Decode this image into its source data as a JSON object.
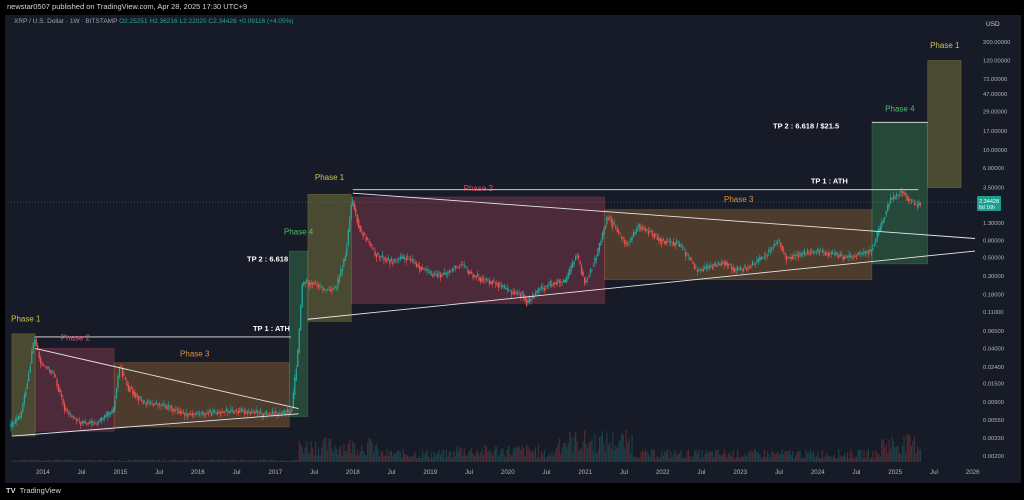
{
  "header": {
    "publisher": "newstar0507 published on TradingView.com, Apr 28, 2025 17:30 UTC+9",
    "symbol": "XRP / U.S. Dollar · 1W · BITSTAMP",
    "ohlc": "O2.25251 H2.36216 L2.22020 C2.34428 +0.09116 (+4.05%)"
  },
  "footer": {
    "logo_text": "TradingView"
  },
  "colors": {
    "background": "#161b27",
    "up": "#26a69a",
    "down": "#ef5350",
    "phase1": "#d4c34c",
    "phase2": "#e0516a",
    "phase3": "#e0913e",
    "phase4": "#4fbf6a",
    "price_badge": "#1e9e8f"
  },
  "chart_data": {
    "type": "candlestick",
    "symbol": "XRP / U.S. Dollar · 1W · BITSTAMP",
    "y_axis": {
      "unit": "USD",
      "scale": "log",
      "ticks": [
        200.0,
        120.0,
        72.0,
        47.0,
        29.0,
        17.0,
        10.0,
        6.0,
        3.5,
        1.3,
        0.8,
        0.5,
        0.3,
        0.18,
        0.11,
        0.065,
        0.04,
        0.024,
        0.015,
        0.009,
        0.0055,
        0.0033,
        0.002
      ],
      "tick_labels": [
        "200.00000",
        "120.00000",
        "72.00000",
        "47.00000",
        "29.00000",
        "17.00000",
        "10.00000",
        "6.00000",
        "3.50000",
        "1.30000",
        "0.80000",
        "0.50000",
        "0.30000",
        "0.18000",
        "0.11000",
        "0.06500",
        "0.04000",
        "0.02400",
        "0.01500",
        "0.00900",
        "0.00550",
        "0.00330",
        "0.00200"
      ],
      "range": [
        0.0017,
        280
      ]
    },
    "x_axis": {
      "range": [
        2013.55,
        2026.03
      ],
      "ticks": [
        {
          "x": 2014.0,
          "label": "2014"
        },
        {
          "x": 2014.5,
          "label": "Jul"
        },
        {
          "x": 2015.0,
          "label": "2015"
        },
        {
          "x": 2015.5,
          "label": "Jul"
        },
        {
          "x": 2016.0,
          "label": "2016"
        },
        {
          "x": 2016.5,
          "label": "Jul"
        },
        {
          "x": 2017.0,
          "label": "2017"
        },
        {
          "x": 2017.5,
          "label": "Jul"
        },
        {
          "x": 2018.0,
          "label": "2018"
        },
        {
          "x": 2018.5,
          "label": "Jul"
        },
        {
          "x": 2019.0,
          "label": "2019"
        },
        {
          "x": 2019.5,
          "label": "Jul"
        },
        {
          "x": 2020.0,
          "label": "2020"
        },
        {
          "x": 2020.5,
          "label": "Jul"
        },
        {
          "x": 2021.0,
          "label": "2021"
        },
        {
          "x": 2021.5,
          "label": "Jul"
        },
        {
          "x": 2022.0,
          "label": "2022"
        },
        {
          "x": 2022.5,
          "label": "Jul"
        },
        {
          "x": 2023.0,
          "label": "2023"
        },
        {
          "x": 2023.5,
          "label": "Jul"
        },
        {
          "x": 2024.0,
          "label": "2024"
        },
        {
          "x": 2024.5,
          "label": "Jul"
        },
        {
          "x": 2025.0,
          "label": "2025"
        },
        {
          "x": 2025.5,
          "label": "Jul"
        },
        {
          "x": 2026.0,
          "label": "2026"
        }
      ]
    },
    "price_keypoints": [
      [
        2013.58,
        0.0045
      ],
      [
        2013.72,
        0.006
      ],
      [
        2013.82,
        0.018
      ],
      [
        2013.9,
        0.055
      ],
      [
        2013.98,
        0.026
      ],
      [
        2014.15,
        0.02
      ],
      [
        2014.3,
        0.007
      ],
      [
        2014.5,
        0.005
      ],
      [
        2014.7,
        0.005
      ],
      [
        2014.92,
        0.007
      ],
      [
        2015.0,
        0.025
      ],
      [
        2015.1,
        0.014
      ],
      [
        2015.3,
        0.009
      ],
      [
        2015.6,
        0.008
      ],
      [
        2015.85,
        0.0065
      ],
      [
        2016.1,
        0.0065
      ],
      [
        2016.35,
        0.007
      ],
      [
        2016.6,
        0.007
      ],
      [
        2016.85,
        0.0065
      ],
      [
        2017.0,
        0.0065
      ],
      [
        2017.1,
        0.0065
      ],
      [
        2017.22,
        0.007
      ],
      [
        2017.3,
        0.035
      ],
      [
        2017.36,
        0.25
      ],
      [
        2017.5,
        0.25
      ],
      [
        2017.65,
        0.2
      ],
      [
        2017.8,
        0.22
      ],
      [
        2017.92,
        0.55
      ],
      [
        2018.0,
        2.5
      ],
      [
        2018.1,
        1.1
      ],
      [
        2018.2,
        0.8
      ],
      [
        2018.3,
        0.55
      ],
      [
        2018.5,
        0.45
      ],
      [
        2018.7,
        0.5
      ],
      [
        2018.9,
        0.37
      ],
      [
        2019.0,
        0.32
      ],
      [
        2019.2,
        0.31
      ],
      [
        2019.4,
        0.42
      ],
      [
        2019.55,
        0.31
      ],
      [
        2019.7,
        0.27
      ],
      [
        2019.85,
        0.25
      ],
      [
        2020.0,
        0.2
      ],
      [
        2020.2,
        0.18
      ],
      [
        2020.25,
        0.14
      ],
      [
        2020.4,
        0.2
      ],
      [
        2020.6,
        0.25
      ],
      [
        2020.75,
        0.25
      ],
      [
        2020.9,
        0.55
      ],
      [
        2021.0,
        0.25
      ],
      [
        2021.15,
        0.5
      ],
      [
        2021.3,
        1.6
      ],
      [
        2021.45,
        0.95
      ],
      [
        2021.55,
        0.7
      ],
      [
        2021.7,
        1.2
      ],
      [
        2021.85,
        1.0
      ],
      [
        2022.0,
        0.8
      ],
      [
        2022.2,
        0.75
      ],
      [
        2022.35,
        0.5
      ],
      [
        2022.45,
        0.35
      ],
      [
        2022.6,
        0.38
      ],
      [
        2022.8,
        0.45
      ],
      [
        2022.95,
        0.35
      ],
      [
        2023.1,
        0.38
      ],
      [
        2023.3,
        0.5
      ],
      [
        2023.5,
        0.8
      ],
      [
        2023.6,
        0.5
      ],
      [
        2023.8,
        0.55
      ],
      [
        2024.0,
        0.6
      ],
      [
        2024.2,
        0.55
      ],
      [
        2024.4,
        0.5
      ],
      [
        2024.55,
        0.55
      ],
      [
        2024.7,
        0.6
      ],
      [
        2024.85,
        1.4
      ],
      [
        2024.95,
        2.5
      ],
      [
        2025.1,
        3.2
      ],
      [
        2025.2,
        2.4
      ],
      [
        2025.3,
        2.1
      ],
      [
        2025.32,
        2.34
      ]
    ],
    "phases": [
      {
        "label": "Phase 1",
        "color": "phase1",
        "x0": 2013.6,
        "x1": 2013.9,
        "y0": 0.0035,
        "y1": 0.06
      },
      {
        "label": "Phase 2",
        "color": "phase2",
        "x0": 2013.9,
        "x1": 2014.92,
        "y0": 0.004,
        "y1": 0.04
      },
      {
        "label": "Phase 3",
        "color": "phase3",
        "x0": 2014.92,
        "x1": 2017.18,
        "y0": 0.0045,
        "y1": 0.027
      },
      {
        "label": "Phase 4",
        "color": "phase4",
        "x0": 2017.18,
        "x1": 2017.42,
        "y0": 0.006,
        "y1": 0.6
      },
      {
        "label": "Phase 1",
        "color": "phase1",
        "x0": 2017.42,
        "x1": 2017.98,
        "y0": 0.085,
        "y1": 2.9
      },
      {
        "label": "Phase 2",
        "color": "phase2",
        "x0": 2017.98,
        "x1": 2021.25,
        "y0": 0.14,
        "y1": 2.7
      },
      {
        "label": "Phase 3",
        "color": "phase3",
        "x0": 2021.25,
        "x1": 2024.7,
        "y0": 0.27,
        "y1": 1.9
      },
      {
        "label": "Phase 4",
        "color": "phase4",
        "x0": 2024.7,
        "x1": 2025.42,
        "y0": 0.42,
        "y1": 21.5
      },
      {
        "label": "Phase 1",
        "color": "phase1",
        "x0": 2025.42,
        "x1": 2025.85,
        "y0": 3.5,
        "y1": 120
      }
    ],
    "trendlines": [
      {
        "x0": 2013.9,
        "y0": 0.055,
        "x1": 2017.2,
        "y1": 0.055
      },
      {
        "x0": 2013.9,
        "y0": 0.04,
        "x1": 2017.3,
        "y1": 0.0075
      },
      {
        "x0": 2013.6,
        "y0": 0.0035,
        "x1": 2017.3,
        "y1": 0.0065
      },
      {
        "x0": 2018.0,
        "y0": 3.3,
        "x1": 2025.3,
        "y1": 3.3
      },
      {
        "x0": 2018.0,
        "y0": 3.0,
        "x1": 2026.03,
        "y1": 0.85
      },
      {
        "x0": 2017.42,
        "y0": 0.09,
        "x1": 2026.03,
        "y1": 0.6
      },
      {
        "x0": 2024.7,
        "y0": 21.5,
        "x1": 2025.42,
        "y1": 21.5
      }
    ],
    "annotations": [
      {
        "text": "Phase 1",
        "color": "phase1",
        "x": 2013.78,
        "y": 0.085
      },
      {
        "text": "Phase 2",
        "color": "phase2",
        "x": 2014.42,
        "y": 0.05
      },
      {
        "text": "Phase 3",
        "color": "phase3",
        "x": 2015.96,
        "y": 0.032
      },
      {
        "text": "Phase 4",
        "color": "phase4",
        "x": 2017.3,
        "y": 0.95
      },
      {
        "text": "Phase 1",
        "color": "phase1",
        "x": 2017.7,
        "y": 4.3
      },
      {
        "text": "Phase 2",
        "color": "phase2",
        "x": 2019.62,
        "y": 3.2
      },
      {
        "text": "Phase 3",
        "color": "phase3",
        "x": 2022.98,
        "y": 2.35
      },
      {
        "text": "Phase 4",
        "color": "phase4",
        "x": 2025.06,
        "y": 29
      },
      {
        "text": "Phase 1",
        "color": "phase1",
        "x": 2025.64,
        "y": 170
      },
      {
        "text": "TP 1 : ATH",
        "color": "white",
        "x": 2016.95,
        "y": 0.065
      },
      {
        "text": "TP 2 : 6.618",
        "color": "white",
        "x": 2016.9,
        "y": 0.45
      },
      {
        "text": "TP 1 : ATH",
        "color": "white",
        "x": 2024.15,
        "y": 3.9
      },
      {
        "text": "TP 2 : 6.618 / $21.5",
        "color": "white",
        "x": 2023.85,
        "y": 18
      }
    ],
    "last_price": {
      "value": 2.34428,
      "label": "2.34428",
      "countdown": "6d 16h"
    }
  }
}
